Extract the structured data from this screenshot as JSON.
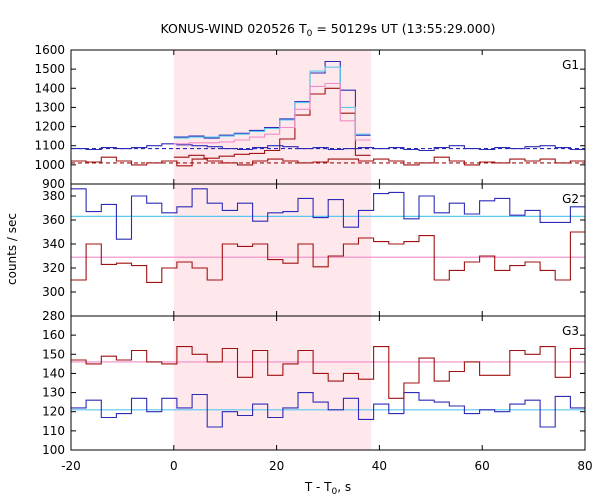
{
  "chart_data": {
    "type": "line",
    "title_main": "KONUS-WIND 020526 T",
    "title_sub": "0",
    "title_rest": " = 50129s UT (13:55:29.000)",
    "xlabel_main": "T - T",
    "xlabel_sub": "0",
    "xlabel_rest": ", s",
    "ylabel": "counts / sec",
    "xlim": [
      -20,
      80
    ],
    "x_ticks": [
      -20,
      0,
      20,
      40,
      60,
      80
    ],
    "shaded_interval": [
      0,
      38.4
    ],
    "colors": {
      "blue": "#2b2bb8",
      "red": "#a01010",
      "light_blue": "#5bc8f0",
      "pink": "#f08cc8",
      "shade": "#ffe8ec"
    },
    "panels": [
      {
        "name": "G1",
        "ylim": [
          900,
          1600
        ],
        "y_ticks": [
          900,
          1000,
          1100,
          1200,
          1300,
          1400,
          1500,
          1600
        ],
        "background": [
          {
            "level": 1085,
            "color": "blue",
            "dashed": true
          },
          {
            "level": 1010,
            "color": "red",
            "dashed": true
          }
        ],
        "series": [
          {
            "color": "blue",
            "x0": -20,
            "dx": 2.944,
            "values": [
              1085,
              1080,
              1090,
              1085,
              1090,
              1100,
              1110,
              1105,
              1100,
              1095,
              1085,
              1080,
              1090,
              1100,
              1095,
              1085,
              1090,
              1080,
              1085,
              1090,
              1085,
              1090,
              1080,
              1075,
              1090,
              1100,
              1085,
              1080,
              1090,
              1085,
              1095,
              1100,
              1090,
              1080
            ]
          },
          {
            "color": "red",
            "x0": -20,
            "dx": 2.944,
            "values": [
              1020,
              1015,
              1040,
              1020,
              1000,
              1010,
              1020,
              995,
              1030,
              1020,
              1010,
              1000,
              1020,
              1030,
              1020,
              1010,
              1015,
              1030,
              1030,
              1020,
              1030,
              1020,
              1000,
              1010,
              1040,
              1020,
              1000,
              1015,
              1010,
              1030,
              1020,
              1030,
              1010,
              1020
            ]
          },
          {
            "color": "blue",
            "x0": 0,
            "dx": 2.944,
            "values": [
              1145,
              1150,
              1140,
              1155,
              1165,
              1180,
              1195,
              1240,
              1330,
              1480,
              1540,
              1390,
              1155
            ]
          },
          {
            "color": "red",
            "x0": 0,
            "dx": 2.944,
            "values": [
              1040,
              1050,
              1035,
              1045,
              1055,
              1060,
              1075,
              1135,
              1260,
              1370,
              1400,
              1270,
              1050
            ]
          },
          {
            "color": "light_blue",
            "x0": 0,
            "dx": 2.944,
            "values": [
              1140,
              1145,
              1145,
              1150,
              1160,
              1175,
              1190,
              1235,
              1325,
              1490,
              1510,
              1300,
              1160
            ]
          },
          {
            "color": "pink",
            "x0": 0,
            "dx": 2.944,
            "values": [
              1110,
              1115,
              1115,
              1120,
              1130,
              1145,
              1160,
              1195,
              1290,
              1410,
              1425,
              1230,
              1130
            ]
          }
        ]
      },
      {
        "name": "G2",
        "ylim": [
          280,
          390
        ],
        "y_ticks": [
          280,
          300,
          320,
          340,
          360,
          380
        ],
        "background": [
          {
            "level": 363,
            "color": "light_blue",
            "dashed": false
          },
          {
            "level": 329,
            "color": "pink",
            "dashed": false
          }
        ],
        "series": [
          {
            "color": "blue",
            "x0": -20,
            "dx": 2.944,
            "values": [
              386,
              367,
              373,
              344,
              380,
              374,
              366,
              371,
              386,
              374,
              368,
              374,
              359,
              366,
              367,
              378,
              362,
              377,
              354,
              368,
              382,
              383,
              361,
              380,
              366,
              374,
              365,
              376,
              378,
              364,
              368,
              358,
              358,
              371,
              372,
              362,
              355,
              366
            ]
          },
          {
            "color": "red",
            "x0": -20,
            "dx": 2.944,
            "values": [
              310,
              340,
              323,
              324,
              322,
              308,
              320,
              325,
              320,
              310,
              340,
              338,
              340,
              327,
              324,
              340,
              321,
              330,
              340,
              345,
              342,
              340,
              342,
              347,
              310,
              318,
              325,
              330,
              318,
              322,
              325,
              318,
              310,
              350,
              312,
              322,
              350,
              314
            ]
          }
        ]
      },
      {
        "name": "G3",
        "ylim": [
          100,
          170
        ],
        "y_ticks": [
          100,
          110,
          120,
          130,
          140,
          150,
          160
        ],
        "background": [
          {
            "level": 121,
            "color": "light_blue",
            "dashed": false
          },
          {
            "level": 146,
            "color": "pink",
            "dashed": false
          }
        ],
        "series": [
          {
            "color": "blue",
            "x0": -20,
            "dx": 2.944,
            "values": [
              122,
              126,
              117,
              119,
              127,
              120,
              127,
              122,
              129,
              112,
              120,
              118,
              124,
              117,
              122,
              130,
              125,
              121,
              127,
              116,
              124,
              119,
              130,
              126,
              125,
              123,
              119,
              121,
              120,
              124,
              126,
              112,
              128,
              122,
              124,
              121,
              128,
              133
            ]
          },
          {
            "color": "red",
            "x0": -20,
            "dx": 2.944,
            "values": [
              147,
              145,
              149,
              147,
              152,
              146,
              145,
              154,
              150,
              146,
              153,
              138,
              152,
              139,
              145,
              152,
              140,
              136,
              140,
              137,
              154,
              127,
              135,
              148,
              136,
              141,
              146,
              139,
              139,
              152,
              150,
              154,
              138,
              153,
              149,
              150,
              151,
              156
            ]
          }
        ]
      }
    ]
  }
}
